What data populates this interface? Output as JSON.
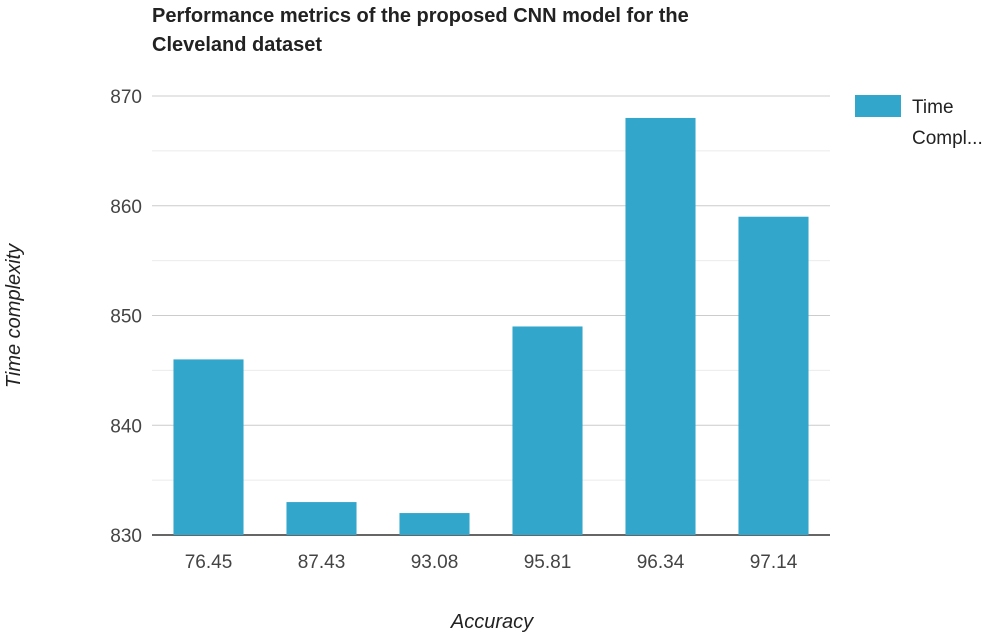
{
  "chart_data": {
    "type": "bar",
    "title_lines": [
      "Performance metrics of the proposed CNN model for the",
      "Cleveland dataset"
    ],
    "xlabel": "Accuracy",
    "ylabel": "Time complexity",
    "categories": [
      "76.45",
      "87.43",
      "93.08",
      "95.81",
      "96.34",
      "97.14"
    ],
    "series": [
      {
        "name": "Time Compl...",
        "legend_lines": [
          "Time",
          "Compl..."
        ],
        "color": "#33a6cc",
        "values": [
          846,
          833,
          832,
          849,
          868,
          859
        ]
      }
    ],
    "ylim": [
      830,
      870
    ],
    "yticks": [
      830,
      840,
      850,
      860,
      870
    ],
    "grid": true,
    "legend_position": "top-right"
  }
}
